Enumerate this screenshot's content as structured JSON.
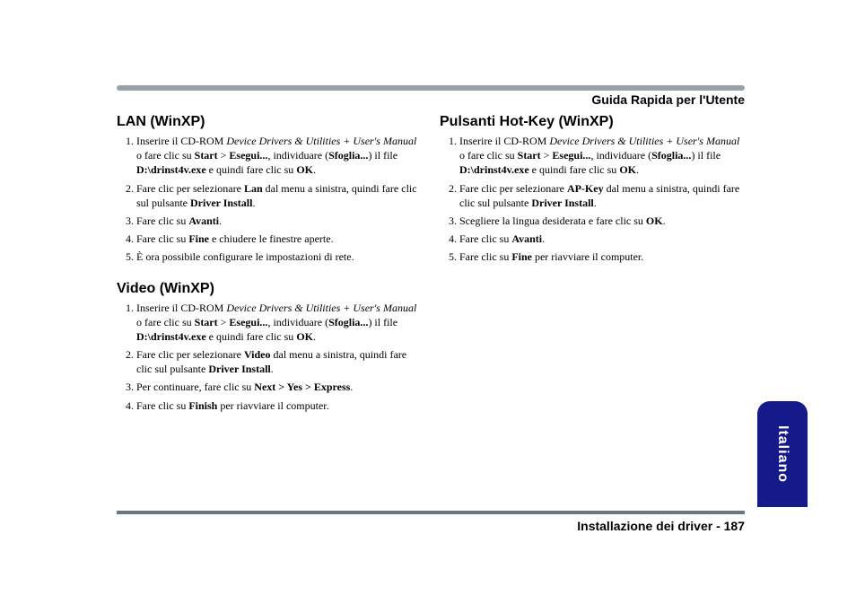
{
  "header": {
    "title": "Guida Rapida per l'Utente",
    "line_color": "#9aa1aa"
  },
  "footer": {
    "text_prefix": "Installazione dei driver - ",
    "page_number": "187",
    "line_color": "#6d7680"
  },
  "lang_tab": {
    "label": "Italiano",
    "bg_color": "#151a8a",
    "text_color": "#ffffff"
  },
  "left_column": {
    "sections": [
      {
        "title": "LAN (WinXP)",
        "steps": [
          "Inserire il CD-ROM <span class=\"i\">Device Drivers & Utilities + User's Manual</span> o fare clic su <span class=\"b\">Start</span> > <span class=\"b\">Esegui...</span>, individuare (<span class=\"b\">Sfoglia...</span>) il file <span class=\"b\">D:\\drinst4v.exe</span>  e quindi fare clic su <span class=\"b\">OK</span>.",
          "Fare clic per selezionare <span class=\"b\">Lan</span> dal menu a sinistra, quindi fare clic sul pulsante <span class=\"b\">Driver Install</span>.",
          "Fare clic su <span class=\"b\">Avanti</span>.",
          "Fare clic su <span class=\"b\">Fine</span> e chiudere le finestre  aperte.",
          "È ora possibile configurare le impostazioni di rete."
        ]
      },
      {
        "title": "Video (WinXP)",
        "steps": [
          "Inserire il CD-ROM <span class=\"i\">Device Drivers & Utilities + User's Manual</span> o fare clic su <span class=\"b\">Start</span> > <span class=\"b\">Esegui...</span>, individuare (<span class=\"b\">Sfoglia...</span>) il file <span class=\"b\">D:\\drinst4v.exe</span>  e quindi fare clic su <span class=\"b\">OK</span>.",
          "Fare clic per selezionare <span class=\"b\">Video</span> dal menu a sinistra, quindi fare clic sul pulsante <span class=\"b\">Driver Install</span>.",
          "Per continuare, fare clic su <span class=\"b\">Next > Yes > Express</span>.",
          "Fare clic su <span class=\"b\">Finish</span> per riavviare il computer."
        ]
      }
    ]
  },
  "right_column": {
    "sections": [
      {
        "title": "Pulsanti Hot-Key (WinXP)",
        "steps": [
          "Inserire il CD-ROM <span class=\"i\">Device Drivers & Utilities + User's Manual</span> o fare clic su <span class=\"b\">Start</span> > <span class=\"b\">Esegui...</span>, individuare (<span class=\"b\">Sfoglia...</span>) il file <span class=\"b\">D:\\drinst4v.exe</span>  e quindi fare clic su <span class=\"b\">OK</span>.",
          "Fare clic per selezionare <span class=\"b\">AP-Key</span> dal menu a sinistra, quindi fare clic sul pulsante <span class=\"b\">Driver Install</span>.",
          "Scegliere la lingua desiderata e fare clic su <span class=\"b\">OK</span>.",
          "Fare clic su <span class=\"b\">Avanti</span>.",
          "Fare clic su <span class=\"b\">Fine</span> per riavviare il computer."
        ]
      }
    ]
  }
}
